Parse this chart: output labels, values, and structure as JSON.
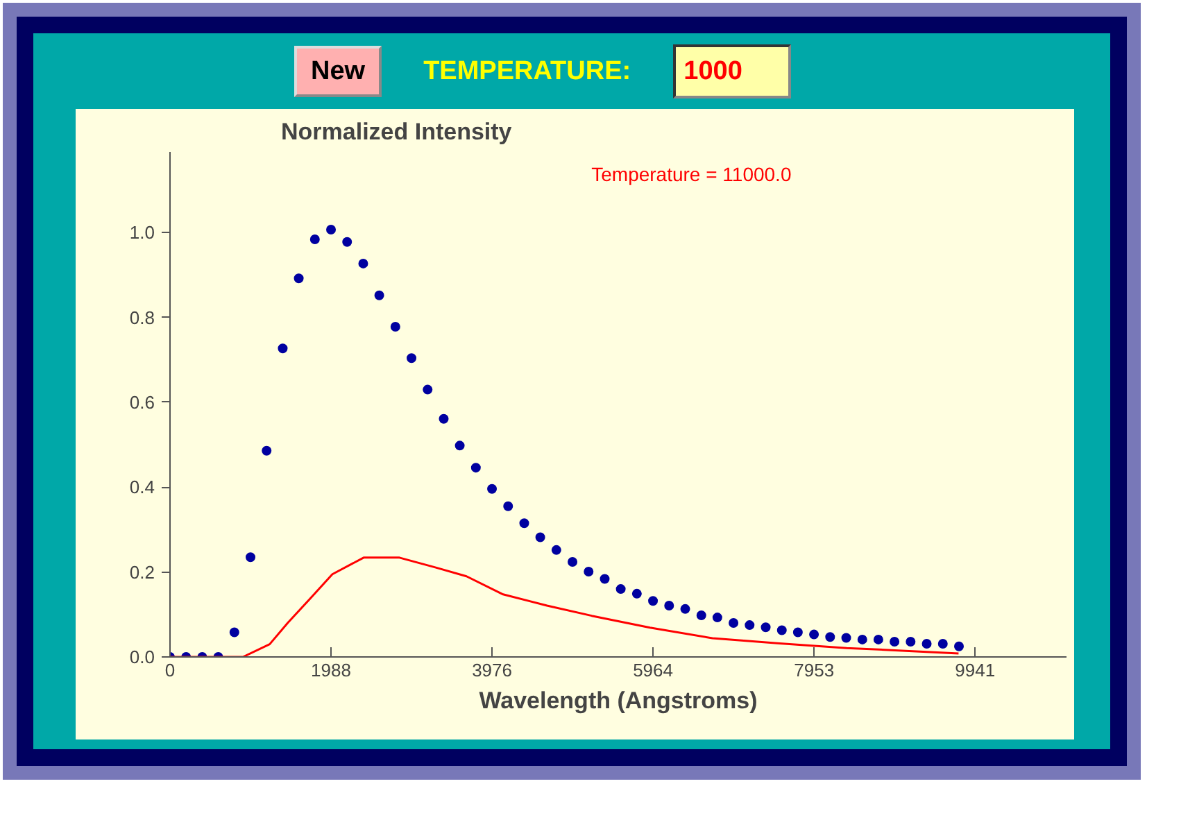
{
  "chart_data": {
    "type": "scatter",
    "ylabel": "Normalized Intensity",
    "xlabel": "Wavelength (Angstroms)",
    "annotations": [
      "Temperature = 11000.0",
      "New",
      "TEMPERATURE:",
      "1000"
    ],
    "xlim": [
      0,
      11070
    ],
    "ylim": [
      0,
      1.19
    ],
    "xticks": [
      0,
      1988,
      3976,
      5964,
      7953,
      9941
    ],
    "yticks": [
      {
        "value": 0,
        "label": "0.0"
      },
      {
        "value": 0.2,
        "label": "0.2"
      },
      {
        "value": 0.4,
        "label": "0.4"
      },
      {
        "value": 0.6,
        "label": "0.6"
      },
      {
        "value": 0.8,
        "label": "0.8"
      },
      {
        "value": 1,
        "label": "1.0"
      }
    ],
    "grid": false,
    "series": [
      {
        "type": "scatter",
        "marker": "circle",
        "color": "#0000a0",
        "x": [
          0,
          199,
          398,
          596,
          795,
          994,
          1193,
          1392,
          1590,
          1789,
          1988,
          2187,
          2386,
          2584,
          2783,
          2982,
          3181,
          3380,
          3578,
          3777,
          3976,
          4175,
          4374,
          4572,
          4771,
          4970,
          5169,
          5368,
          5566,
          5765,
          5964,
          6163,
          6362,
          6561,
          6759,
          6958,
          7157,
          7356,
          7555,
          7753,
          7952,
          8151,
          8350,
          8549,
          8747,
          8946,
          9145,
          9344,
          9543,
          9742
        ],
        "values": [
          0,
          0,
          0,
          0,
          0.058,
          0.235,
          0.486,
          0.727,
          0.892,
          0.984,
          1.007,
          0.978,
          0.927,
          0.852,
          0.778,
          0.704,
          0.63,
          0.561,
          0.498,
          0.446,
          0.396,
          0.355,
          0.315,
          0.282,
          0.252,
          0.224,
          0.201,
          0.184,
          0.16,
          0.149,
          0.132,
          0.121,
          0.113,
          0.098,
          0.093,
          0.08,
          0.075,
          0.07,
          0.063,
          0.058,
          0.053,
          0.047,
          0.045,
          0.041,
          0.041,
          0.036,
          0.036,
          0.031,
          0.031,
          0.025
        ]
      },
      {
        "type": "line",
        "marker": "none",
        "line_style": "solid",
        "color": "#ff0000",
        "x": [
          0,
          900,
          1231,
          1453,
          1728,
          2005,
          2391,
          2833,
          3275,
          3661,
          4104,
          4655,
          5207,
          5926,
          6698,
          7527,
          8355,
          8908,
          9737
        ],
        "values": [
          0,
          0,
          0.03,
          0.08,
          0.137,
          0.195,
          0.234,
          0.234,
          0.211,
          0.19,
          0.148,
          0.121,
          0.097,
          0.069,
          0.044,
          0.032,
          0.021,
          0.016,
          0.008
        ]
      }
    ]
  }
}
